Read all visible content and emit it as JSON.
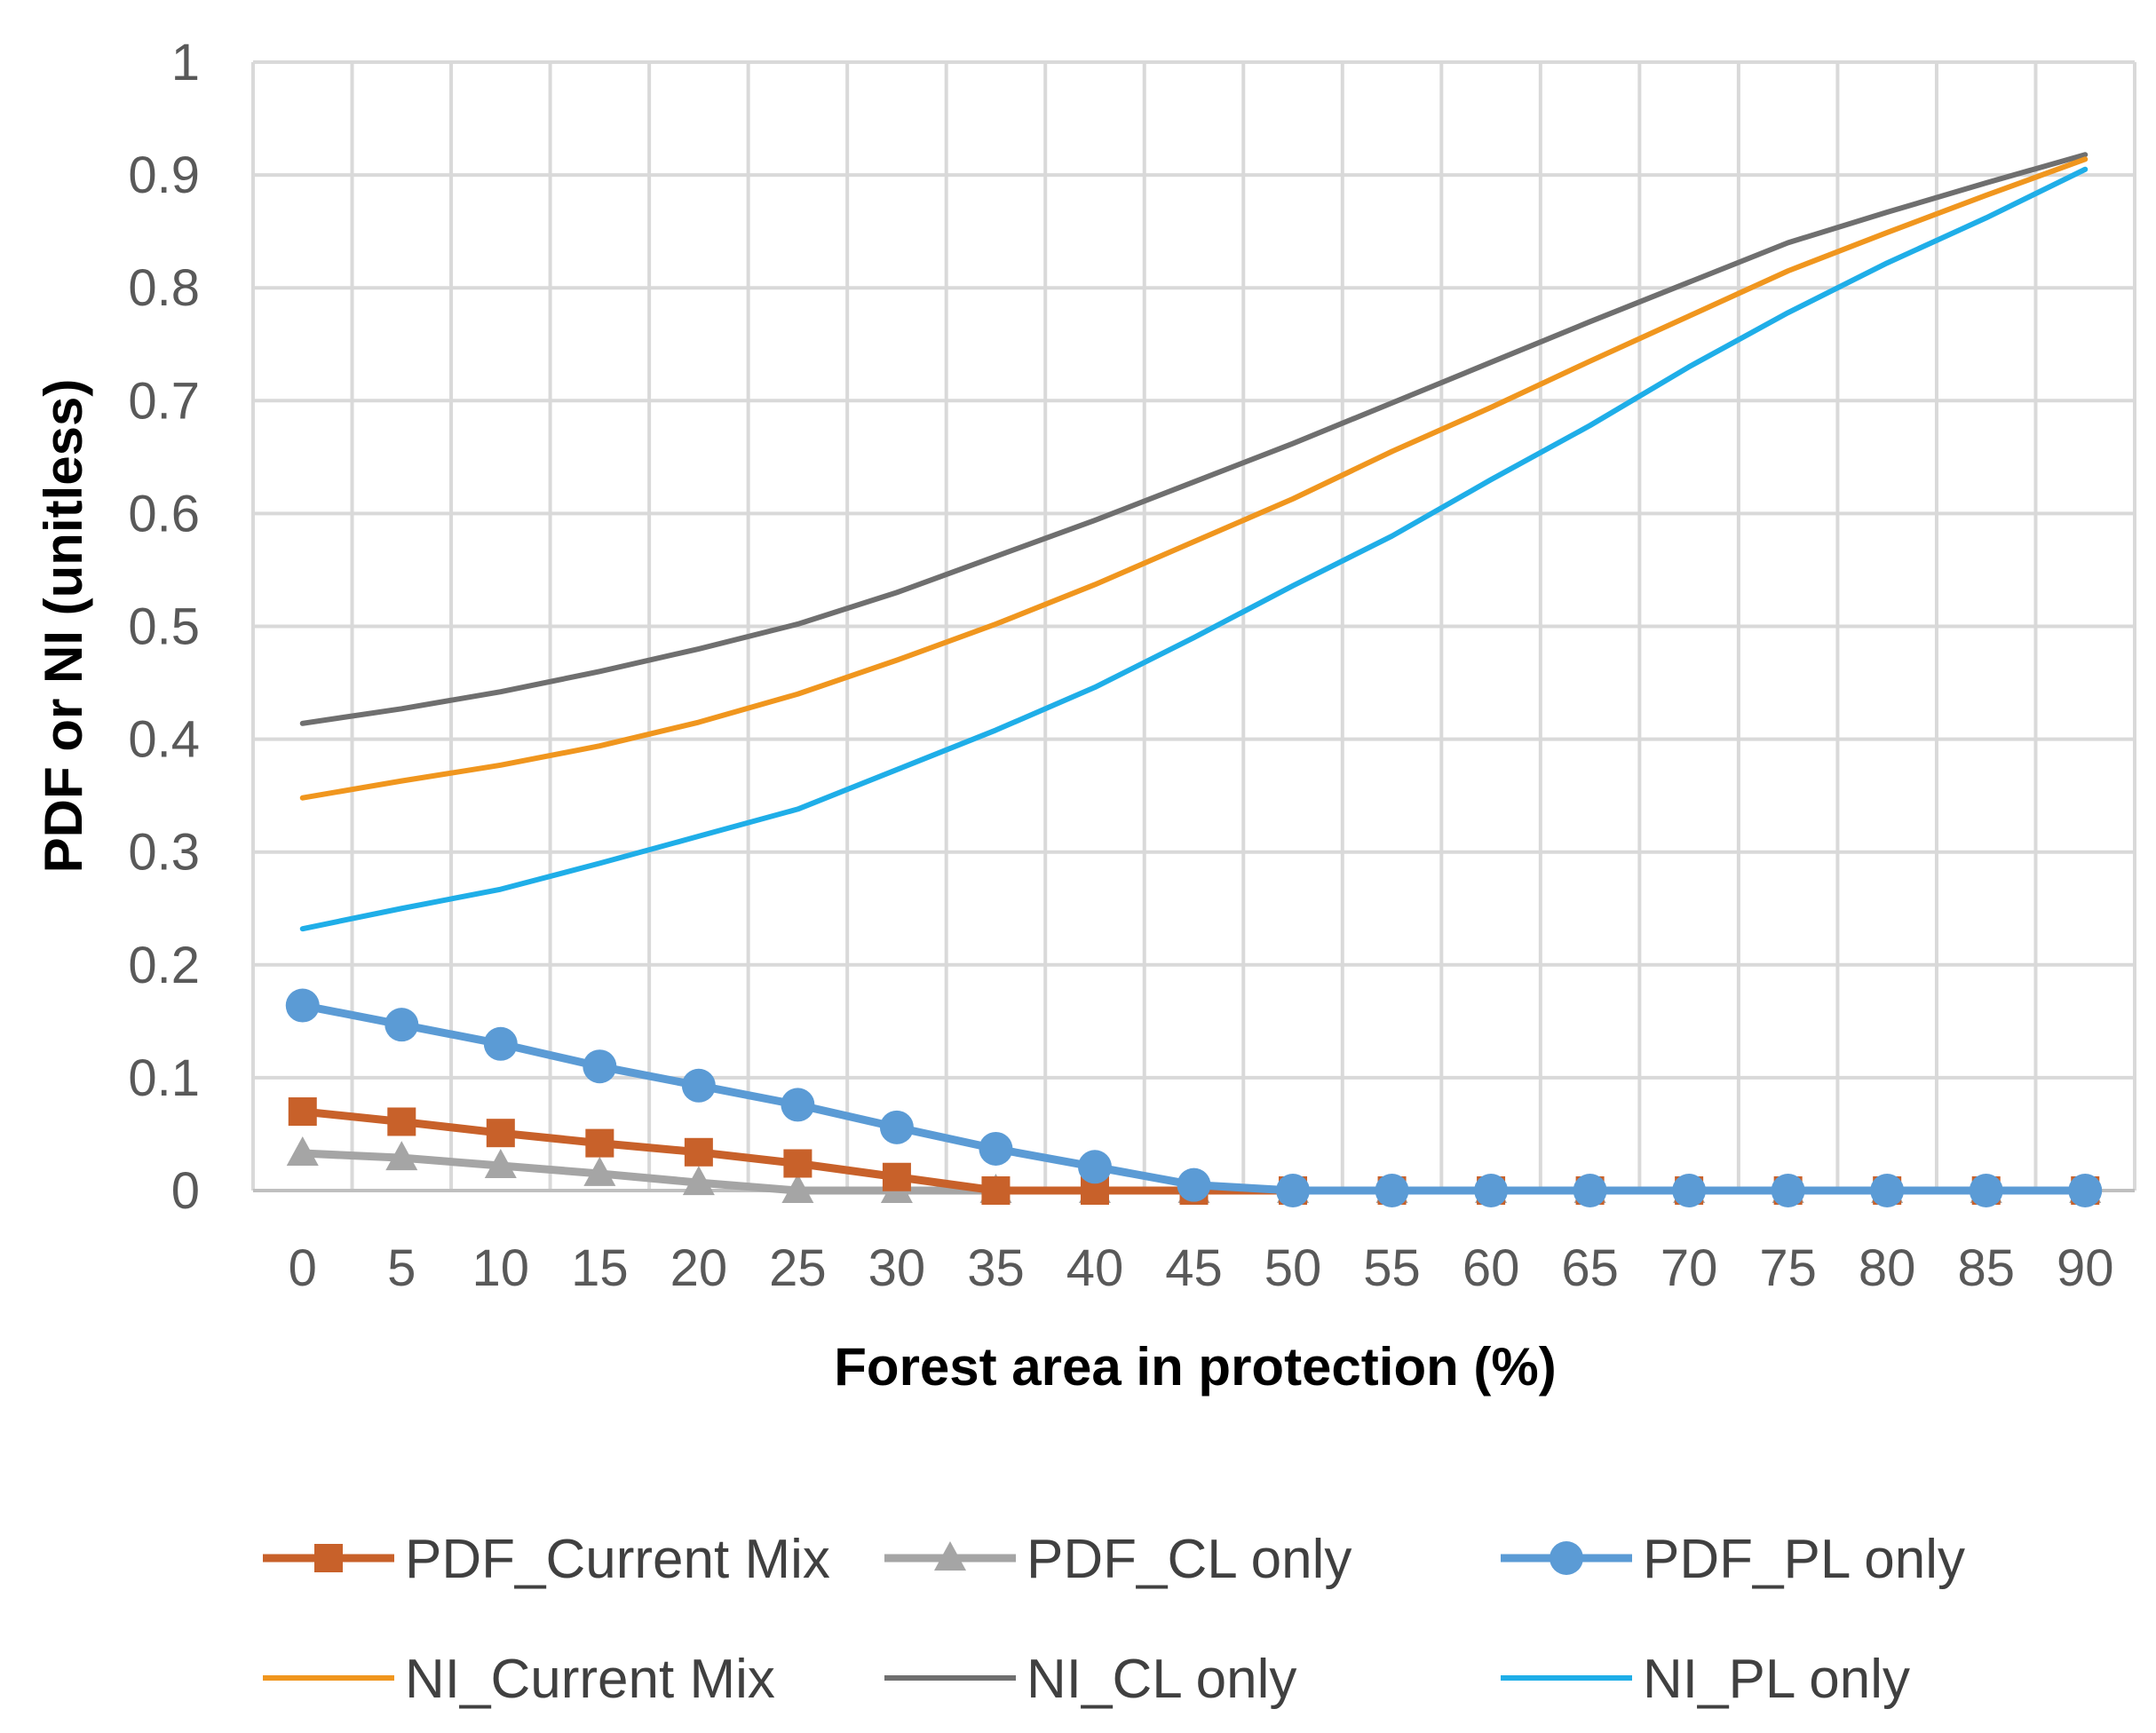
{
  "chart_data": {
    "type": "line",
    "title": "",
    "xlabel": "Forest area in protection (%)",
    "ylabel": "PDF or NI (unitless)",
    "ylim": [
      0,
      1
    ],
    "yticks": [
      "0",
      "0.1",
      "0.2",
      "0.3",
      "0.4",
      "0.5",
      "0.6",
      "0.7",
      "0.8",
      "0.9",
      "1"
    ],
    "grid": true,
    "legend_position": "bottom",
    "categories": [
      "0",
      "5",
      "10",
      "15",
      "20",
      "25",
      "30",
      "35",
      "40",
      "45",
      "50",
      "55",
      "60",
      "65",
      "70",
      "75",
      "80",
      "85",
      "90"
    ],
    "series": [
      {
        "name": "PDF_Current Mix",
        "color": "#C8612A",
        "marker": "square",
        "values": [
          0.07,
          0.061,
          0.051,
          0.042,
          0.034,
          0.024,
          0.012,
          0,
          0,
          0,
          0,
          0,
          0,
          0,
          0,
          0,
          0,
          0,
          0
        ]
      },
      {
        "name": "PDF_CL only",
        "color": "#A5A5A5",
        "marker": "triangle",
        "values": [
          0.033,
          0.029,
          0.022,
          0.015,
          0.007,
          0,
          0,
          0,
          0,
          0,
          0,
          0,
          0,
          0,
          0,
          0,
          0,
          0,
          0
        ]
      },
      {
        "name": "PDF_PL only",
        "color": "#5B9BD5",
        "marker": "circle",
        "values": [
          0.164,
          0.147,
          0.13,
          0.11,
          0.093,
          0.076,
          0.056,
          0.037,
          0.021,
          0.005,
          0,
          0,
          0,
          0,
          0,
          0,
          0,
          0,
          0
        ]
      },
      {
        "name": "NI_Current Mix",
        "color": "#F0961E",
        "marker": "none",
        "values": [
          0.348,
          0.363,
          0.377,
          0.394,
          0.415,
          0.44,
          0.47,
          0.502,
          0.537,
          0.575,
          0.613,
          0.655,
          0.694,
          0.735,
          0.775,
          0.815,
          0.849,
          0.882,
          0.914
        ]
      },
      {
        "name": "NI_CL only",
        "color": "#6F6F6F",
        "marker": "none",
        "values": [
          0.414,
          0.427,
          0.442,
          0.46,
          0.48,
          0.502,
          0.53,
          0.562,
          0.594,
          0.628,
          0.662,
          0.698,
          0.734,
          0.77,
          0.805,
          0.84,
          0.867,
          0.893,
          0.918
        ]
      },
      {
        "name": "NI_PL only",
        "color": "#1FAEE8",
        "marker": "none",
        "values": [
          0.232,
          0.25,
          0.267,
          0.29,
          0.314,
          0.338,
          0.373,
          0.408,
          0.446,
          0.49,
          0.536,
          0.58,
          0.63,
          0.678,
          0.73,
          0.778,
          0.822,
          0.862,
          0.905
        ]
      }
    ]
  }
}
